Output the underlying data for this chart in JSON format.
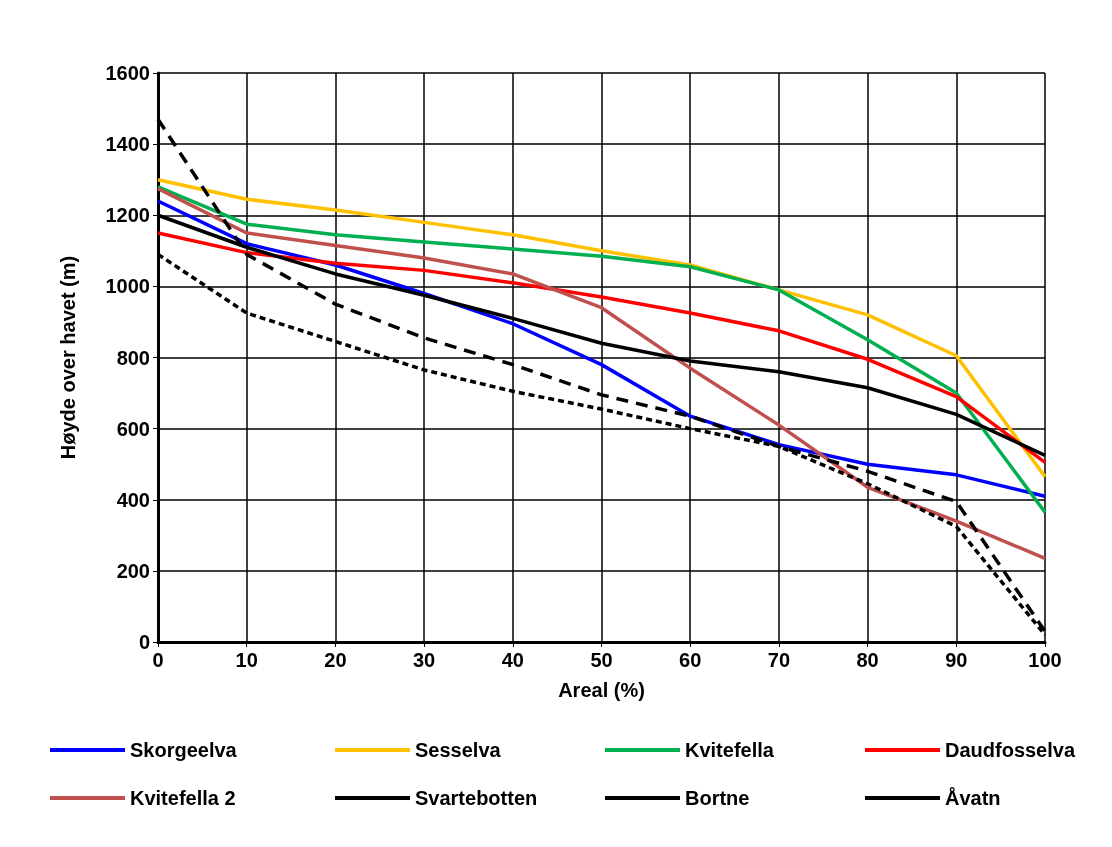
{
  "chart_data": {
    "type": "line",
    "xlabel": "Areal (%)",
    "ylabel": "Høyde over havet (m)",
    "x": [
      0,
      10,
      20,
      30,
      40,
      50,
      60,
      70,
      80,
      90,
      100
    ],
    "xlim": [
      0,
      100
    ],
    "xticks": [
      0,
      10,
      20,
      30,
      40,
      50,
      60,
      70,
      80,
      90,
      100
    ],
    "ylim": [
      0,
      1600
    ],
    "yticks": [
      0,
      200,
      400,
      600,
      800,
      1000,
      1200,
      1400,
      1600
    ],
    "grid": true,
    "legend": "bottom",
    "marker": "none",
    "series": [
      {
        "name": "Skorgeelva",
        "color": "#0000ff",
        "line_style": "solid",
        "values": [
          1240,
          1120,
          1060,
          980,
          895,
          780,
          635,
          555,
          500,
          470,
          410
        ]
      },
      {
        "name": "Sesselva",
        "color": "#ffc000",
        "line_style": "solid",
        "values": [
          1300,
          1245,
          1215,
          1180,
          1145,
          1100,
          1060,
          990,
          920,
          805,
          465
        ]
      },
      {
        "name": "Kvitefella",
        "color": "#00b050",
        "line_style": "solid",
        "values": [
          1280,
          1175,
          1145,
          1125,
          1105,
          1085,
          1055,
          990,
          850,
          700,
          365
        ]
      },
      {
        "name": "Daudfosselva",
        "color": "#ff0000",
        "line_style": "solid",
        "values": [
          1150,
          1095,
          1065,
          1045,
          1010,
          970,
          925,
          875,
          795,
          690,
          505
        ]
      },
      {
        "name": "Kvitefella 2",
        "color": "#c0504d",
        "line_style": "solid",
        "values": [
          1275,
          1150,
          1115,
          1080,
          1035,
          940,
          770,
          610,
          435,
          340,
          235
        ]
      },
      {
        "name": "Svartebotten",
        "color": "#000000",
        "line_style": "solid",
        "values": [
          1200,
          1110,
          1035,
          975,
          910,
          840,
          790,
          760,
          715,
          640,
          525
        ]
      },
      {
        "name": "Bortne",
        "color": "#000000",
        "line_style": "dotted",
        "values": [
          1090,
          925,
          845,
          765,
          705,
          655,
          600,
          550,
          445,
          325,
          20
        ]
      },
      {
        "name": "Åvatn",
        "color": "#000000",
        "line_style": "dashed",
        "values": [
          1470,
          1090,
          950,
          855,
          780,
          695,
          635,
          550,
          480,
          395,
          30
        ]
      }
    ]
  }
}
